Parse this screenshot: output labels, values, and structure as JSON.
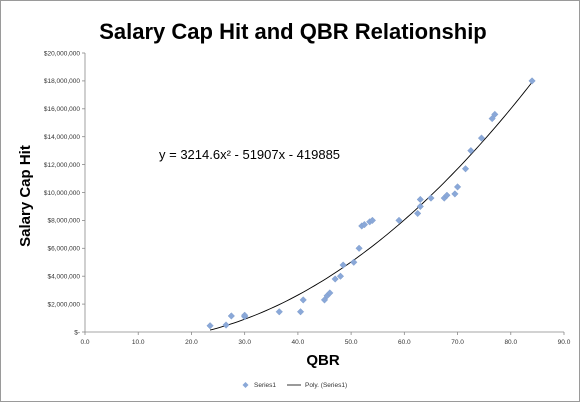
{
  "chart_data": {
    "type": "scatter",
    "title": "Salary Cap Hit and QBR Relationship",
    "xlabel": "QBR",
    "ylabel": "Salary Cap Hit",
    "xlim": [
      0,
      90
    ],
    "ylim": [
      0,
      20000000
    ],
    "x_ticks": [
      0,
      10,
      20,
      30,
      40,
      50,
      60,
      70,
      80,
      90
    ],
    "x_tick_labels": [
      "0.0",
      "10.0",
      "20.0",
      "30.0",
      "40.0",
      "50.0",
      "60.0",
      "70.0",
      "80.0",
      "90.0"
    ],
    "y_ticks": [
      0,
      2000000,
      4000000,
      6000000,
      8000000,
      10000000,
      12000000,
      14000000,
      16000000,
      18000000,
      20000000
    ],
    "y_tick_labels": [
      "$-",
      "$2,000,000",
      "$4,000,000",
      "$6,000,000",
      "$8,000,000",
      "$10,000,000",
      "$12,000,000",
      "$14,000,000",
      "$16,000,000",
      "$18,000,000",
      "$20,000,000"
    ],
    "grid": false,
    "legend_position": "bottom",
    "series": [
      {
        "name": "Series1",
        "color": "#8aa8d8",
        "marker": "diamond",
        "x": [
          23.5,
          26.5,
          27.5,
          30.0,
          30.0,
          36.5,
          40.5,
          41.0,
          45.0,
          45.5,
          46.0,
          47.0,
          48.0,
          48.5,
          50.5,
          51.5,
          52.0,
          52.5,
          53.5,
          54.0,
          59.0,
          62.5,
          63.0,
          63.0,
          65.0,
          67.5,
          68.0,
          69.5,
          70.0,
          71.5,
          72.5,
          74.5,
          76.5,
          77.0,
          84.0
        ],
        "y": [
          450000,
          500000,
          1150000,
          1100000,
          1200000,
          1450000,
          1450000,
          2300000,
          2300000,
          2600000,
          2800000,
          3800000,
          4000000,
          4800000,
          5000000,
          6000000,
          7600000,
          7700000,
          7900000,
          8000000,
          8000000,
          8500000,
          9000000,
          9500000,
          9600000,
          9600000,
          9800000,
          9900000,
          10400000,
          11700000,
          13000000,
          13900000,
          15300000,
          15600000,
          18000000
        ]
      },
      {
        "name": "Poly. (Series1)",
        "color": "#000000",
        "type": "trendline",
        "fit": "polynomial",
        "coefficients": [
          3214.6,
          -51907,
          -419885
        ],
        "x_range": [
          23.5,
          84.0
        ]
      }
    ],
    "annotations": [
      {
        "text": "y = 3214.6x² - 51907x - 419885",
        "x": 28,
        "y": 12600000
      }
    ]
  }
}
